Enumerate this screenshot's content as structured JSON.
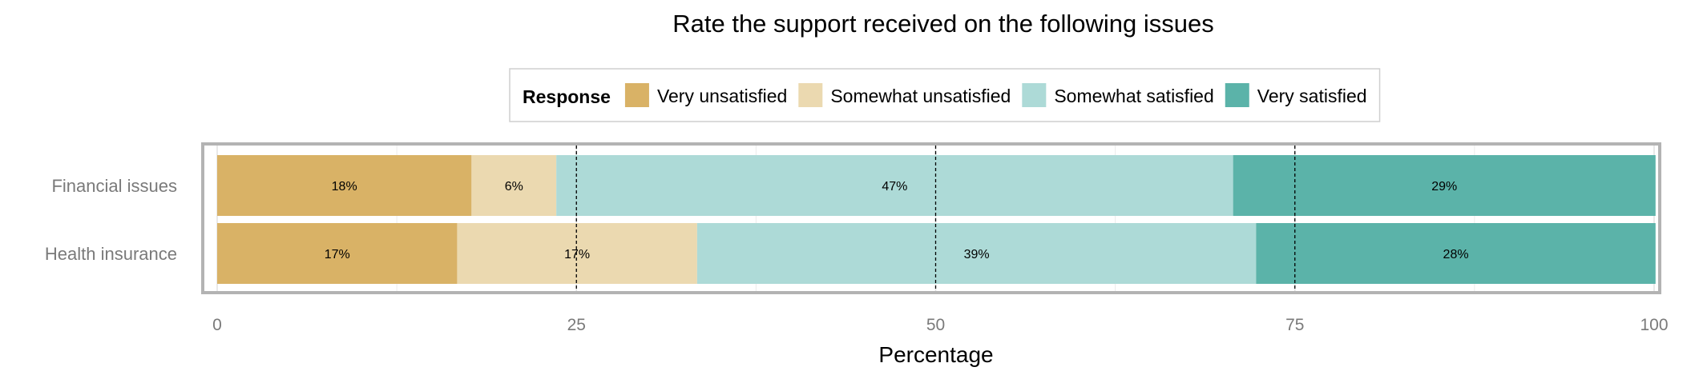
{
  "chart_data": {
    "type": "bar",
    "orientation": "horizontal",
    "stacked": true,
    "title": "Rate the support received on the following issues",
    "xlabel": "Percentage",
    "ylabel": "",
    "xlim": [
      0,
      100
    ],
    "x_ticks": [
      "0",
      "25",
      "50",
      "75",
      "100"
    ],
    "reference_lines": [
      25,
      50,
      75
    ],
    "grid": true,
    "legend": {
      "title": "Response",
      "position": "top",
      "entries": [
        "Very unsatisfied",
        "Somewhat unsatisfied",
        "Somewhat satisfied",
        "Very satisfied"
      ]
    },
    "categories": [
      "Financial issues",
      "Health insurance"
    ],
    "series": [
      {
        "name": "Very unsatisfied",
        "color": "#D9B266",
        "values": [
          17.7,
          16.7
        ],
        "labels": [
          "18%",
          "17%"
        ]
      },
      {
        "name": "Somewhat unsatisfied",
        "color": "#EBD9B0",
        "values": [
          5.9,
          16.7
        ],
        "labels": [
          "6%",
          "17%"
        ]
      },
      {
        "name": "Somewhat satisfied",
        "color": "#ADDAD7",
        "values": [
          47.1,
          38.9
        ],
        "labels": [
          "47%",
          "39%"
        ]
      },
      {
        "name": "Very satisfied",
        "color": "#5BB3A9",
        "values": [
          29.4,
          27.8
        ],
        "labels": [
          "29%",
          "28%"
        ]
      }
    ]
  }
}
